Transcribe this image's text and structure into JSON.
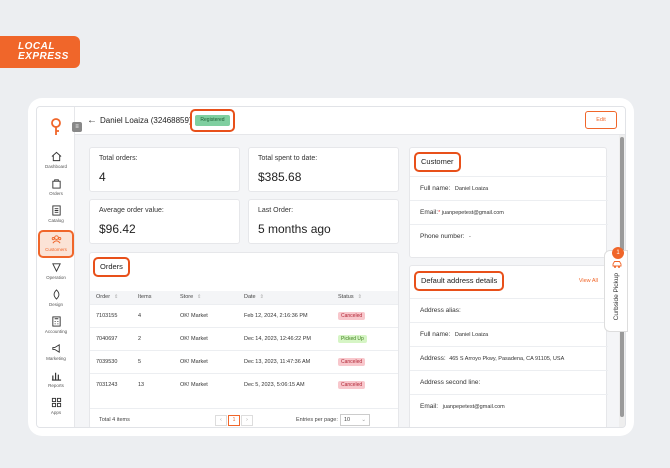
{
  "brand": {
    "line1": "LOCAL",
    "line2": "EXPRESS",
    "accent": "#f0662a"
  },
  "sidebar": {
    "items": [
      {
        "label": "Dashboard",
        "icon": "home-icon"
      },
      {
        "label": "Orders",
        "icon": "bag-icon"
      },
      {
        "label": "Catalog",
        "icon": "catalog-icon"
      },
      {
        "label": "Customers",
        "icon": "customers-icon"
      },
      {
        "label": "Operation",
        "icon": "operation-icon"
      },
      {
        "label": "Design",
        "icon": "design-icon"
      },
      {
        "label": "Accounting",
        "icon": "accounting-icon"
      },
      {
        "label": "Marketing",
        "icon": "megaphone-icon"
      },
      {
        "label": "Reports",
        "icon": "chart-icon"
      },
      {
        "label": "Apps",
        "icon": "apps-icon"
      }
    ]
  },
  "header": {
    "title": "Daniel Loaiza (32468859)",
    "status": "Registered",
    "edit_label": "Edit"
  },
  "stats": {
    "total_orders": {
      "label": "Total orders:",
      "value": "4"
    },
    "total_spent": {
      "label": "Total spent to date:",
      "value": "$385.68"
    },
    "avg_order": {
      "label": "Average order value:",
      "value": "$96.42"
    },
    "last_order": {
      "label": "Last Order:",
      "value": "5 months ago"
    }
  },
  "orders": {
    "title": "Orders",
    "columns": [
      "Order",
      "Items",
      "Store",
      "Date",
      "Status"
    ],
    "rows": [
      {
        "order": "7103155",
        "items": "4",
        "store": "OK! Market",
        "date": "Feb 12, 2024, 2:16:36 PM",
        "status": "Canceled"
      },
      {
        "order": "7040697",
        "items": "2",
        "store": "OK! Market",
        "date": "Dec 14, 2023, 12:46:22 PM",
        "status": "Picked Up"
      },
      {
        "order": "7039530",
        "items": "5",
        "store": "OK! Market",
        "date": "Dec 13, 2023, 11:47:36 AM",
        "status": "Canceled"
      },
      {
        "order": "7031243",
        "items": "13",
        "store": "OK! Market",
        "date": "Dec 5, 2023, 5:06:15 AM",
        "status": "Canceled"
      }
    ],
    "total": "Total 4 items",
    "page": "1",
    "per_page_label": "Entries per page:",
    "per_page_value": "10"
  },
  "customer": {
    "title": "Customer",
    "full_name_label": "Full name:",
    "full_name": "Daniel Loaiza",
    "email_label": "Email:",
    "email": "juanpepetest@gmail.com",
    "phone_label": "Phone number:",
    "phone": "-"
  },
  "address": {
    "title": "Default address details",
    "view_all": "View All",
    "alias_label": "Address alias:",
    "full_name_label": "Full name:",
    "full_name": "Daniel Loaiza",
    "address_label": "Address:",
    "address": "465 S Arroyo Pkwy, Pasadena, CA 91105, USA",
    "second_line_label": "Address second line:",
    "email_label": "Email:",
    "email": "juanpepetest@gmail.com"
  },
  "curbside": {
    "label": "Curbside Pickup",
    "count": "1"
  }
}
